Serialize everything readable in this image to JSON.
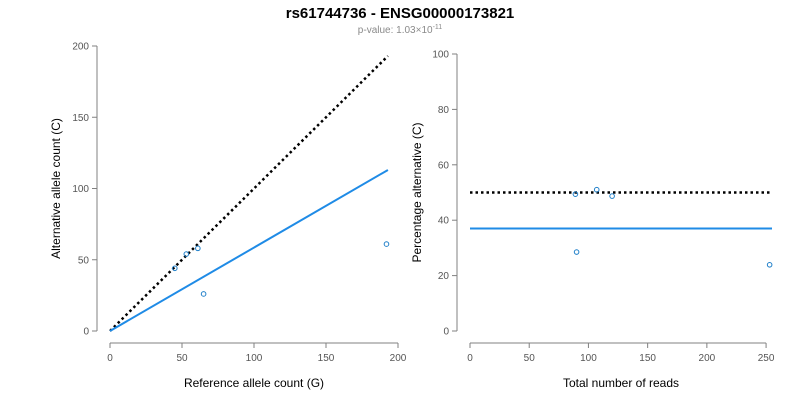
{
  "title": "rs61744736 - ENSG00000173821",
  "subtitle": {
    "prefix": "p-value: 1.03×10",
    "exponent": "-11"
  },
  "colors": {
    "points": "#1f7fc9",
    "fit_line": "#1f8be6",
    "reference_line": "#000000",
    "axis": "#808080"
  },
  "chart_data": [
    {
      "type": "scatter",
      "xlabel": "Reference allele count (G)",
      "ylabel": "Alternative allele count (C)",
      "xlim": [
        0,
        200
      ],
      "ylim": [
        0,
        200
      ],
      "xticks": [
        0,
        50,
        100,
        150,
        200
      ],
      "yticks": [
        0,
        50,
        100,
        150,
        200
      ],
      "points": [
        {
          "x": 45,
          "y": 44
        },
        {
          "x": 53,
          "y": 54
        },
        {
          "x": 61,
          "y": 58
        },
        {
          "x": 65,
          "y": 26
        },
        {
          "x": 192,
          "y": 61
        }
      ],
      "lines": [
        {
          "style": "dotted",
          "color": "#000000",
          "x": [
            0,
            193
          ],
          "y": [
            0,
            193
          ]
        },
        {
          "style": "solid",
          "color": "#1f8be6",
          "x": [
            0,
            193
          ],
          "y": [
            0,
            113
          ]
        }
      ]
    },
    {
      "type": "scatter",
      "xlabel": "Total number of reads",
      "ylabel": "Percentage alternative (C)",
      "xlim": [
        0,
        255
      ],
      "ylim": [
        0,
        100
      ],
      "xticks": [
        0,
        50,
        100,
        150,
        200,
        250
      ],
      "yticks": [
        0,
        20,
        40,
        60,
        80,
        100
      ],
      "points": [
        {
          "x": 89,
          "y": 49.4
        },
        {
          "x": 90,
          "y": 28.5
        },
        {
          "x": 107,
          "y": 51.0
        },
        {
          "x": 120,
          "y": 48.7
        },
        {
          "x": 253,
          "y": 23.9
        }
      ],
      "lines": [
        {
          "style": "dotted",
          "color": "#000000",
          "x": [
            0,
            255
          ],
          "y": [
            50,
            50
          ]
        },
        {
          "style": "solid",
          "color": "#1f8be6",
          "x": [
            0,
            255
          ],
          "y": [
            37,
            37
          ]
        }
      ]
    }
  ]
}
